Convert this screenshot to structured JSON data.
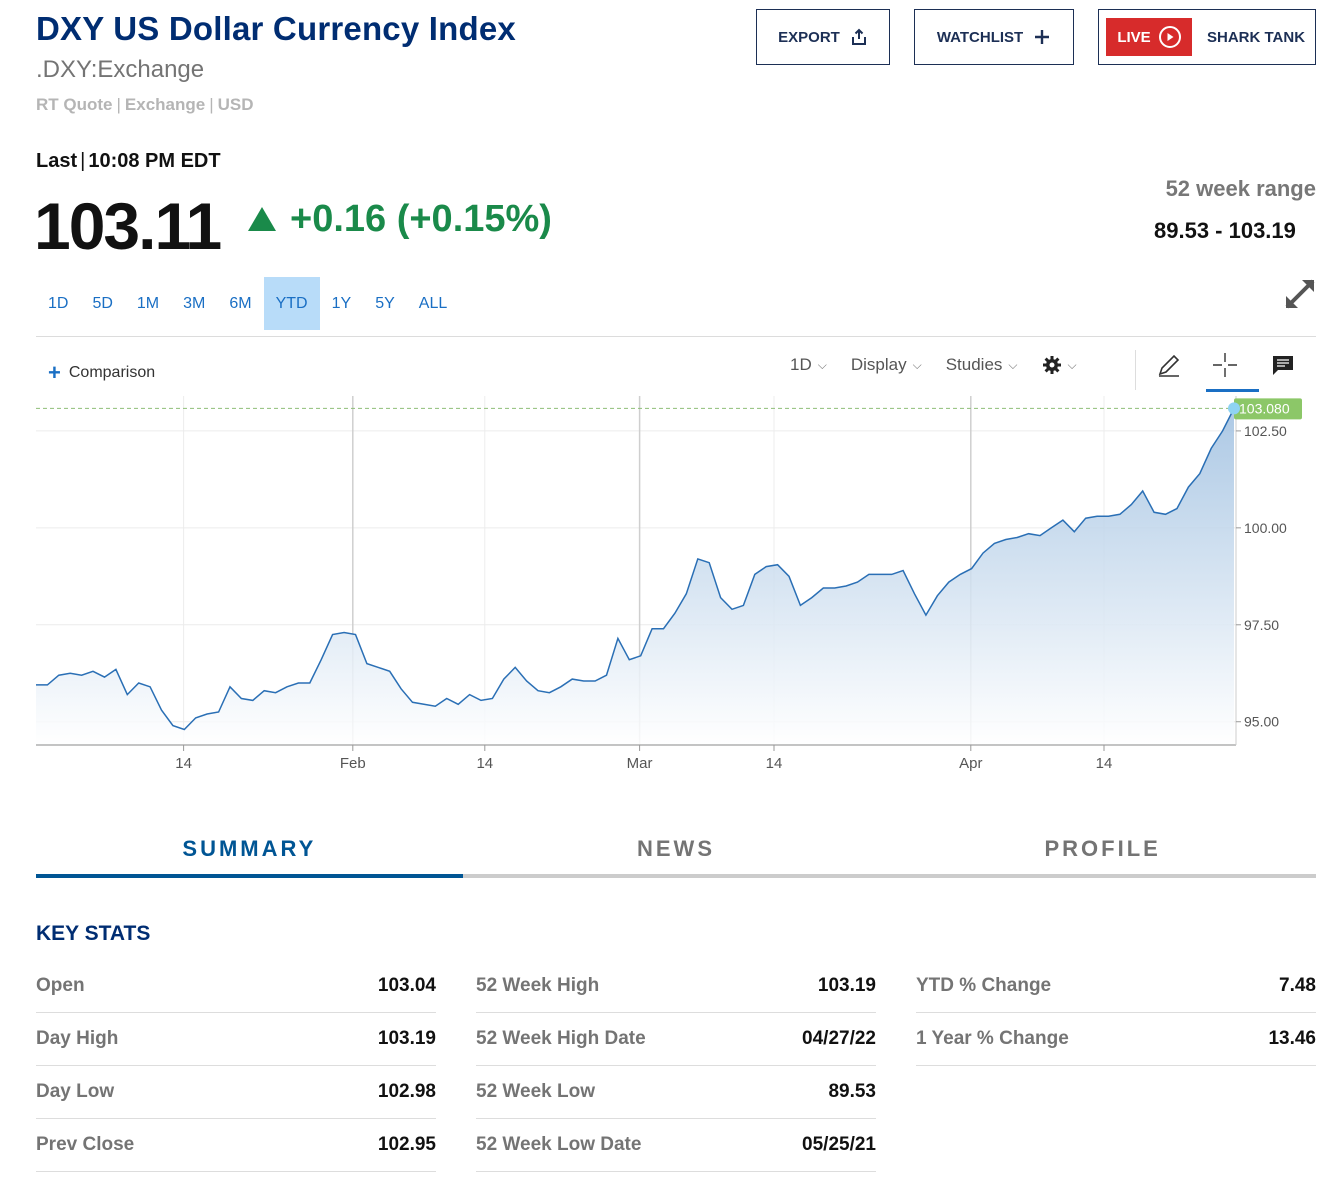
{
  "header": {
    "title": "DXY US Dollar Currency Index",
    "symbol": ".DXY:Exchange",
    "meta": [
      "RT Quote",
      "Exchange",
      "USD"
    ],
    "meta_sep": "|"
  },
  "buttons": {
    "export": "EXPORT",
    "watchlist": "WATCHLIST",
    "live": "LIVE",
    "shark_tank": "SHARK TANK"
  },
  "quote": {
    "last_label": "Last",
    "last_sep": "|",
    "time": "10:08 PM EDT",
    "price": "103.11",
    "change": "+0.16 (+0.15%)",
    "change_color": "#1a8a4a",
    "range_label": "52 week range",
    "range_value": "89.53 - 103.19"
  },
  "periods": [
    "1D",
    "5D",
    "1M",
    "3M",
    "6M",
    "YTD",
    "1Y",
    "5Y",
    "ALL"
  ],
  "active_period": "YTD",
  "chart_toolbar": {
    "comparison": "Comparison",
    "interval": "1D",
    "display": "Display",
    "studies": "Studies"
  },
  "chart_data": {
    "type": "area",
    "last_value_label": "103.080",
    "last_value": 103.08,
    "ylim": [
      94.4,
      103.4
    ],
    "yticks": [
      95.0,
      97.5,
      100.0,
      102.5
    ],
    "ytick_labels": [
      "95.00",
      "97.50",
      "100.00",
      "102.50"
    ],
    "xticks": [
      {
        "label": "14",
        "t": 0.123
      },
      {
        "label": "Feb",
        "t": 0.264
      },
      {
        "label": "14",
        "t": 0.374
      },
      {
        "label": "Mar",
        "t": 0.503
      },
      {
        "label": "14",
        "t": 0.615
      },
      {
        "label": "Apr",
        "t": 0.779
      },
      {
        "label": "14",
        "t": 0.89
      }
    ],
    "values": [
      95.95,
      95.95,
      96.2,
      96.25,
      96.2,
      96.3,
      96.15,
      96.35,
      95.7,
      96.0,
      95.9,
      95.3,
      94.9,
      94.8,
      95.1,
      95.2,
      95.25,
      95.9,
      95.6,
      95.55,
      95.8,
      95.75,
      95.9,
      96.0,
      96.0,
      96.6,
      97.25,
      97.3,
      97.25,
      96.5,
      96.4,
      96.3,
      95.85,
      95.5,
      95.45,
      95.4,
      95.6,
      95.45,
      95.7,
      95.55,
      95.6,
      96.1,
      96.4,
      96.05,
      95.8,
      95.75,
      95.9,
      96.1,
      96.05,
      96.05,
      96.2,
      97.15,
      96.6,
      96.7,
      97.4,
      97.4,
      97.8,
      98.3,
      99.2,
      99.1,
      98.2,
      97.9,
      98.0,
      98.8,
      99.0,
      99.05,
      98.75,
      98.0,
      98.2,
      98.45,
      98.45,
      98.5,
      98.6,
      98.8,
      98.8,
      98.8,
      98.9,
      98.3,
      97.75,
      98.25,
      98.6,
      98.8,
      98.95,
      99.35,
      99.6,
      99.7,
      99.75,
      99.85,
      99.8,
      100.0,
      100.2,
      99.9,
      100.25,
      100.3,
      100.3,
      100.35,
      100.6,
      100.95,
      100.4,
      100.35,
      100.5,
      101.05,
      101.4,
      102.05,
      102.5,
      103.08
    ]
  },
  "tabs": [
    "SUMMARY",
    "NEWS",
    "PROFILE"
  ],
  "key_stats": {
    "title": "KEY STATS",
    "col1": [
      {
        "label": "Open",
        "value": "103.04"
      },
      {
        "label": "Day High",
        "value": "103.19"
      },
      {
        "label": "Day Low",
        "value": "102.98"
      },
      {
        "label": "Prev Close",
        "value": "102.95"
      }
    ],
    "col2": [
      {
        "label": "52 Week High",
        "value": "103.19"
      },
      {
        "label": "52 Week High Date",
        "value": "04/27/22"
      },
      {
        "label": "52 Week Low",
        "value": "89.53"
      },
      {
        "label": "52 Week Low Date",
        "value": "05/25/21"
      }
    ],
    "col3": [
      {
        "label": "YTD % Change",
        "value": "7.48"
      },
      {
        "label": "1 Year % Change",
        "value": "13.46"
      }
    ]
  }
}
